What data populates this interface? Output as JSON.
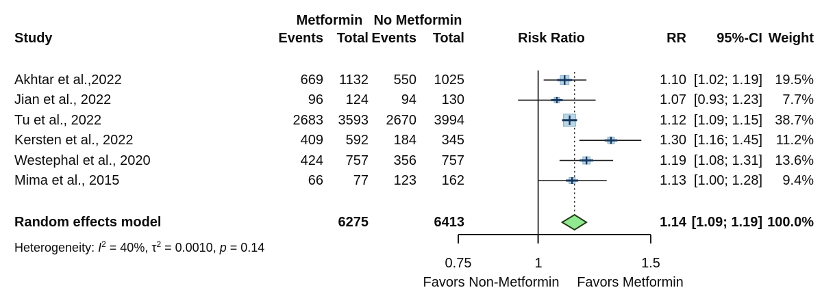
{
  "header": {
    "group1": "Metformin",
    "group2": "No Metformin",
    "col_study": "Study",
    "col_events1": "Events",
    "col_total1": "Total",
    "col_events2": "Events",
    "col_total2": "Total",
    "col_risk_ratio": "Risk Ratio",
    "col_rr": "RR",
    "col_ci": "95%-CI",
    "col_weight": "Weight"
  },
  "rows": [
    {
      "study": "Akhtar et al.,2022",
      "events1": "669",
      "total1": "1132",
      "events2": "550",
      "total2": "1025",
      "rr": "1.10",
      "ci": "[1.02; 1.19]",
      "weight": "19.5%"
    },
    {
      "study": "Jian et al., 2022",
      "events1": "96",
      "total1": "124",
      "events2": "94",
      "total2": "130",
      "rr": "1.07",
      "ci": "[0.93; 1.23]",
      "weight": "7.7%"
    },
    {
      "study": "Tu et al., 2022",
      "events1": "2683",
      "total1": "3593",
      "events2": "2670",
      "total2": "3994",
      "rr": "1.12",
      "ci": "[1.09; 1.15]",
      "weight": "38.7%"
    },
    {
      "study": "Kersten et al., 2022",
      "events1": "409",
      "total1": "592",
      "events2": "184",
      "total2": "345",
      "rr": "1.30",
      "ci": "[1.16; 1.45]",
      "weight": "11.2%"
    },
    {
      "study": "Westephal et al., 2020",
      "events1": "424",
      "total1": "757",
      "events2": "356",
      "total2": "757",
      "rr": "1.19",
      "ci": "[1.08; 1.31]",
      "weight": "13.6%"
    },
    {
      "study": "Mima et al., 2015",
      "events1": "66",
      "total1": "77",
      "events2": "123",
      "total2": "162",
      "rr": "1.13",
      "ci": "[1.00; 1.28]",
      "weight": "9.4%"
    }
  ],
  "summary_row": {
    "label": "Random effects model",
    "total1": "6275",
    "total2": "6413",
    "rr": "1.14",
    "ci": "[1.09; 1.19]",
    "weight": "100.0%"
  },
  "heterogeneity": {
    "p1": "Heterogeneity: ",
    "i": "I",
    "s1": "2",
    "p2": " = 40%, τ",
    "s2": "2",
    "p3": " = 0.0010, ",
    "p": "p",
    "p4": " = 0.14"
  },
  "axis": {
    "ticks": [
      "0.75",
      "1",
      "1.5"
    ],
    "favors_left": "Favors Non-Metformin",
    "favors_right": "Favors Metformin"
  },
  "chart_data": {
    "type": "forest",
    "scale": "log",
    "xlim": [
      0.75,
      1.5
    ],
    "axis_ticks": [
      0.75,
      1,
      1.5
    ],
    "reference_line": 1,
    "effect_measure": "Risk Ratio",
    "studies": [
      {
        "name": "Akhtar et al.,2022",
        "events_metformin": 669,
        "total_metformin": 1132,
        "events_no_metformin": 550,
        "total_no_metformin": 1025,
        "rr": 1.1,
        "ci_low": 1.02,
        "ci_high": 1.19,
        "weight_pct": 19.5
      },
      {
        "name": "Jian et al., 2022",
        "events_metformin": 96,
        "total_metformin": 124,
        "events_no_metformin": 94,
        "total_no_metformin": 130,
        "rr": 1.07,
        "ci_low": 0.93,
        "ci_high": 1.23,
        "weight_pct": 7.7
      },
      {
        "name": "Tu et al., 2022",
        "events_metformin": 2683,
        "total_metformin": 3593,
        "events_no_metformin": 2670,
        "total_no_metformin": 3994,
        "rr": 1.12,
        "ci_low": 1.09,
        "ci_high": 1.15,
        "weight_pct": 38.7
      },
      {
        "name": "Kersten et al., 2022",
        "events_metformin": 409,
        "total_metformin": 592,
        "events_no_metformin": 184,
        "total_no_metformin": 345,
        "rr": 1.3,
        "ci_low": 1.16,
        "ci_high": 1.45,
        "weight_pct": 11.2
      },
      {
        "name": "Westephal et al., 2020",
        "events_metformin": 424,
        "total_metformin": 757,
        "events_no_metformin": 356,
        "total_no_metformin": 757,
        "rr": 1.19,
        "ci_low": 1.08,
        "ci_high": 1.31,
        "weight_pct": 13.6
      },
      {
        "name": "Mima et al., 2015",
        "events_metformin": 66,
        "total_metformin": 77,
        "events_no_metformin": 123,
        "total_no_metformin": 162,
        "rr": 1.13,
        "ci_low": 1.0,
        "ci_high": 1.28,
        "weight_pct": 9.4
      }
    ],
    "summary": {
      "name": "Random effects model",
      "total_metformin": 6275,
      "total_no_metformin": 6413,
      "rr": 1.14,
      "ci_low": 1.09,
      "ci_high": 1.19,
      "weight_pct": 100.0
    },
    "heterogeneity": {
      "I2_pct": 40,
      "tau2": 0.001,
      "p": 0.14
    },
    "favors_left": "Favors Non-Metformin",
    "favors_right": "Favors Metformin",
    "colors": {
      "square_fill": "#b9d6e6",
      "square_border": "#8ab1c9",
      "marker": "#17375e",
      "ci_line": "#1a1a1a",
      "diamond_fill": "#90e890",
      "diamond_border": "#223a16",
      "axis": "#1a1a1a",
      "dotted_line": "#2b2b2b"
    }
  }
}
